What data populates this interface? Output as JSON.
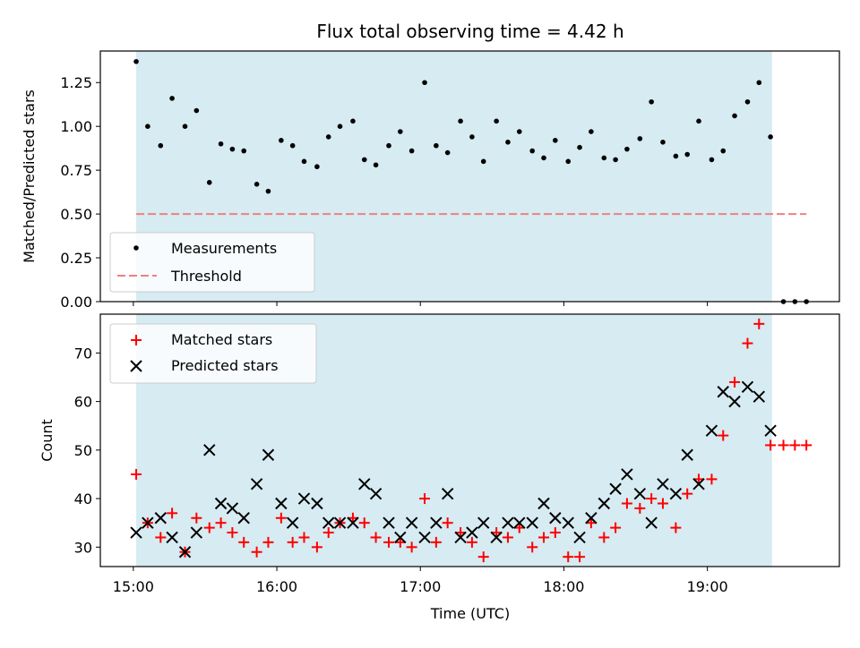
{
  "chart_data": [
    {
      "type": "scatter",
      "title": "Flux total observing time = 4.42 h",
      "xlabel": "",
      "ylabel": "Matched/Predicted stars",
      "xlim_hours": [
        14.77,
        19.92
      ],
      "ylim": [
        0,
        1.43
      ],
      "yticks": [
        "0.00",
        "0.25",
        "0.50",
        "0.75",
        "1.00",
        "1.25"
      ],
      "legend_location": "lower-left",
      "shaded_span_hours": [
        15.02,
        19.45
      ],
      "series": [
        {
          "name": "Measurements",
          "marker": "dot",
          "color": "#000000",
          "x": [
            15.02,
            15.1,
            15.19,
            15.27,
            15.36,
            15.44,
            15.53,
            15.61,
            15.69,
            15.77,
            15.86,
            15.94,
            16.03,
            16.11,
            16.19,
            16.28,
            16.36,
            16.44,
            16.53,
            16.61,
            16.69,
            16.78,
            16.86,
            16.94,
            17.03,
            17.11,
            17.19,
            17.28,
            17.36,
            17.44,
            17.53,
            17.61,
            17.69,
            17.78,
            17.86,
            17.94,
            18.03,
            18.11,
            18.19,
            18.28,
            18.36,
            18.44,
            18.53,
            18.61,
            18.69,
            18.78,
            18.86,
            18.94,
            19.03,
            19.11,
            19.19,
            19.28,
            19.36,
            19.44,
            19.53,
            19.61,
            19.69
          ],
          "y": [
            1.37,
            1.0,
            0.89,
            1.16,
            1.0,
            1.09,
            0.68,
            0.9,
            0.87,
            0.86,
            0.67,
            0.63,
            0.92,
            0.89,
            0.8,
            0.77,
            0.94,
            1.0,
            1.03,
            0.81,
            0.78,
            0.89,
            0.97,
            0.86,
            1.25,
            0.89,
            0.85,
            1.03,
            0.94,
            0.8,
            1.03,
            0.91,
            0.97,
            0.86,
            0.82,
            0.92,
            0.8,
            0.88,
            0.97,
            0.82,
            0.81,
            0.87,
            0.93,
            1.14,
            0.91,
            0.83,
            0.84,
            1.03,
            0.81,
            0.86,
            1.06,
            1.14,
            1.25,
            0.94,
            0.0,
            0.0,
            0.0
          ]
        },
        {
          "name": "Threshold",
          "marker": "dashed-line",
          "color": "#f08080",
          "x": [
            15.02,
            19.69
          ],
          "y": [
            0.5,
            0.5
          ]
        }
      ]
    },
    {
      "type": "scatter",
      "title": "",
      "xlabel": "Time (UTC)",
      "ylabel": "Count",
      "xlim_hours": [
        14.77,
        19.92
      ],
      "ylim": [
        26,
        78
      ],
      "yticks": [
        "30",
        "40",
        "50",
        "60",
        "70"
      ],
      "xticks_hours": [
        15,
        16,
        17,
        18,
        19
      ],
      "xtick_labels": [
        "15:00",
        "16:00",
        "17:00",
        "18:00",
        "19:00"
      ],
      "legend_location": "top-left",
      "shaded_span_hours": [
        15.02,
        19.45
      ],
      "series": [
        {
          "name": "Matched stars",
          "marker": "plus",
          "color": "#ff0000",
          "x": [
            15.02,
            15.1,
            15.19,
            15.27,
            15.36,
            15.44,
            15.53,
            15.61,
            15.69,
            15.77,
            15.86,
            15.94,
            16.03,
            16.11,
            16.19,
            16.28,
            16.36,
            16.44,
            16.53,
            16.61,
            16.69,
            16.78,
            16.86,
            16.94,
            17.03,
            17.11,
            17.19,
            17.28,
            17.36,
            17.44,
            17.53,
            17.61,
            17.69,
            17.78,
            17.86,
            17.94,
            18.03,
            18.11,
            18.19,
            18.28,
            18.36,
            18.44,
            18.53,
            18.61,
            18.69,
            18.78,
            18.86,
            18.94,
            19.03,
            19.11,
            19.19,
            19.28,
            19.36,
            19.44,
            19.53,
            19.61,
            19.69
          ],
          "y": [
            45,
            35,
            32,
            37,
            29,
            36,
            34,
            35,
            33,
            31,
            29,
            31,
            36,
            31,
            32,
            30,
            33,
            35,
            36,
            35,
            32,
            31,
            31,
            30,
            40,
            31,
            35,
            33,
            31,
            28,
            33,
            32,
            34,
            30,
            32,
            33,
            28,
            28,
            35,
            32,
            34,
            39,
            38,
            40,
            39,
            34,
            41,
            44,
            44,
            53,
            64,
            72,
            76,
            51,
            51,
            51,
            51
          ]
        },
        {
          "name": "Predicted stars",
          "marker": "x",
          "color": "#000000",
          "x": [
            15.02,
            15.1,
            15.19,
            15.27,
            15.36,
            15.44,
            15.53,
            15.61,
            15.69,
            15.77,
            15.86,
            15.94,
            16.03,
            16.11,
            16.19,
            16.28,
            16.36,
            16.44,
            16.53,
            16.61,
            16.69,
            16.78,
            16.86,
            16.94,
            17.03,
            17.11,
            17.19,
            17.28,
            17.36,
            17.44,
            17.53,
            17.61,
            17.69,
            17.78,
            17.86,
            17.94,
            18.03,
            18.11,
            18.19,
            18.28,
            18.36,
            18.44,
            18.53,
            18.61,
            18.69,
            18.78,
            18.86,
            18.94,
            19.03,
            19.11,
            19.19,
            19.28,
            19.36,
            19.44
          ],
          "y": [
            33,
            35,
            36,
            32,
            29,
            33,
            50,
            39,
            38,
            36,
            43,
            49,
            39,
            35,
            40,
            39,
            35,
            35,
            35,
            43,
            41,
            35,
            32,
            35,
            32,
            35,
            41,
            32,
            33,
            35,
            32,
            35,
            35,
            35,
            39,
            36,
            35,
            32,
            36,
            39,
            42,
            45,
            41,
            35,
            43,
            41,
            49,
            43,
            54,
            62,
            60,
            63,
            61,
            54
          ]
        }
      ]
    }
  ]
}
